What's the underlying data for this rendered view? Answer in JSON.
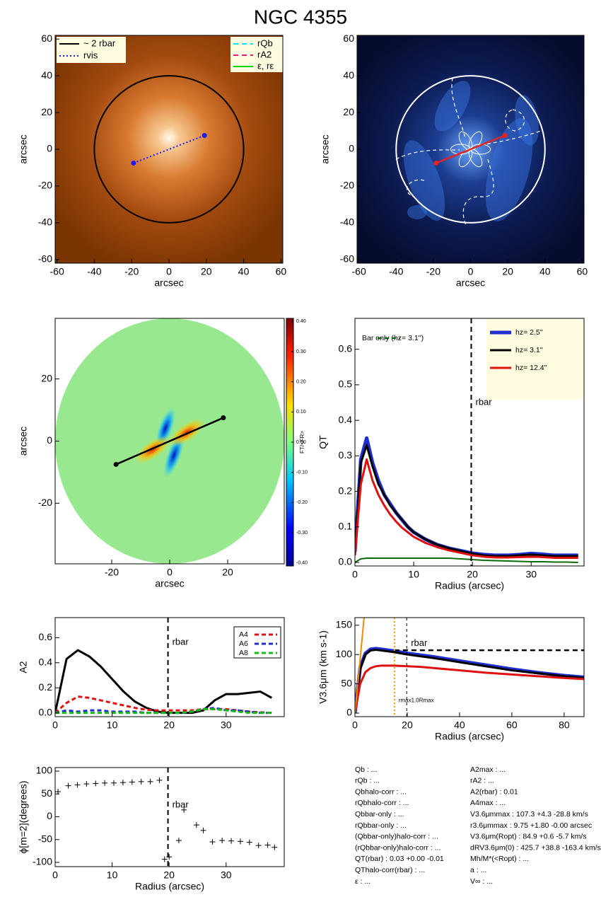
{
  "title": "NGC 4355",
  "chart_data": [
    {
      "type": "image",
      "colormap": "copper",
      "xlim": [
        -61,
        61
      ],
      "ylim": [
        -62,
        62
      ],
      "xticks": [
        -60,
        -40,
        -20,
        0,
        20,
        40,
        60
      ],
      "yticks": [
        -60,
        -40,
        -20,
        0,
        20,
        40,
        60
      ],
      "xlabel": "arcsec",
      "ylabel": "arcsec",
      "circle_radius": 40,
      "circle_color": "#000000",
      "bar": {
        "x": [
          -19,
          19
        ],
        "y": [
          -7.5,
          7.5
        ]
      },
      "bar_color": "#1a1aff",
      "bar_style": "dotted",
      "legend": [
        {
          "label": "~ 2 rbar",
          "color": "#000000",
          "style": "solid"
        },
        {
          "label": "rvis",
          "color": "#1a1aff",
          "style": "dotted"
        },
        {
          "label": "rQb",
          "color": "#00e5ff",
          "style": "dashed"
        },
        {
          "label": "rA2",
          "color": "#e0207a",
          "style": "dashed"
        },
        {
          "label": "ε, rε",
          "color": "#00d000",
          "style": "solid"
        }
      ]
    },
    {
      "type": "image",
      "colormap": "blue",
      "xlim": [
        -61,
        61
      ],
      "ylim": [
        -62,
        62
      ],
      "xticks": [
        -60,
        -40,
        -20,
        0,
        20,
        40,
        60
      ],
      "yticks": [
        -60,
        -40,
        -20,
        0,
        20,
        40,
        60
      ],
      "xlabel": "arcsec",
      "ylabel": "arcsec",
      "circle_radius": 40,
      "circle_color": "#ffffff",
      "bar": {
        "x": [
          -18.5,
          18.5
        ],
        "y": [
          -7.5,
          7.5
        ]
      },
      "bar_color": "#e82020",
      "bar_style": "solid"
    },
    {
      "type": "image",
      "colormap": "jet",
      "xlim": [
        -39.5,
        39.5
      ],
      "ylim": [
        -39.5,
        39.5
      ],
      "xticks": [
        -20,
        0,
        20
      ],
      "yticks": [
        -20,
        0,
        20
      ],
      "xlabel": "arcsec",
      "ylabel": "arcsec",
      "bar": {
        "x": [
          -18.5,
          18.5
        ],
        "y": [
          -7.5,
          7.5
        ]
      },
      "bar_color": "#000000",
      "bar_style": "solid",
      "clim": [
        -0.41,
        0.41
      ],
      "cbar_label": "FT/<FR>",
      "cticks": [
        {
          "value": 0.4,
          "label": "0.40"
        },
        {
          "value": 0.3,
          "label": "0.30"
        },
        {
          "value": 0.2,
          "label": "0.20"
        },
        {
          "value": 0.1,
          "label": "0.10"
        },
        {
          "value": 0.0,
          "label": "0.00"
        },
        {
          "value": -0.1,
          "label": "-0.10"
        },
        {
          "value": -0.2,
          "label": "-0.20"
        },
        {
          "value": -0.3,
          "label": "-0.30"
        },
        {
          "value": -0.4,
          "label": "-0.40"
        }
      ]
    },
    {
      "type": "line",
      "xlim": [
        0,
        39
      ],
      "ylim": [
        -0.01,
        0.687
      ],
      "xticks": [
        0,
        10,
        20,
        30
      ],
      "yticks": [
        {
          "value": 0.0,
          "label": "0.0"
        },
        {
          "value": 0.1,
          "label": "0.1"
        },
        {
          "value": 0.2,
          "label": "0.2"
        },
        {
          "value": 0.3,
          "label": "0.3"
        },
        {
          "value": 0.4,
          "label": "0.4"
        },
        {
          "value": 0.5,
          "label": "0.5"
        },
        {
          "value": 0.6,
          "label": "0.6"
        }
      ],
      "xlabel": "Radius (arcsec)",
      "ylabel": "QT",
      "x": [
        0,
        1,
        2,
        3,
        4,
        5,
        6,
        7,
        8,
        9,
        10,
        12,
        14,
        16,
        18,
        20,
        22,
        24,
        26,
        28,
        30,
        32,
        34,
        36,
        38
      ],
      "series": [
        {
          "name": "hz=  2.5''",
          "color": "#1f2fd0",
          "width": 5,
          "values": [
            0.03,
            0.29,
            0.35,
            0.28,
            0.23,
            0.19,
            0.165,
            0.14,
            0.12,
            0.1,
            0.085,
            0.065,
            0.05,
            0.04,
            0.033,
            0.026,
            0.022,
            0.02,
            0.02,
            0.022,
            0.025,
            0.023,
            0.02,
            0.02,
            0.02
          ]
        },
        {
          "name": "hz=  3.1''",
          "color": "#000000",
          "width": 3,
          "values": [
            0.02,
            0.28,
            0.33,
            0.27,
            0.22,
            0.19,
            0.16,
            0.14,
            0.12,
            0.1,
            0.085,
            0.065,
            0.05,
            0.04,
            0.032,
            0.025,
            0.02,
            0.018,
            0.018,
            0.02,
            0.022,
            0.02,
            0.018,
            0.018,
            0.018
          ]
        },
        {
          "name": "hz=  12.4''",
          "color": "#e01010",
          "width": 3,
          "values": [
            0.02,
            0.22,
            0.29,
            0.23,
            0.19,
            0.16,
            0.135,
            0.115,
            0.098,
            0.085,
            0.072,
            0.055,
            0.043,
            0.034,
            0.027,
            0.02,
            0.016,
            0.014,
            0.014,
            0.015,
            0.016,
            0.015,
            0.013,
            0.013,
            0.013
          ]
        },
        {
          "name": "Bar only (hz=  3.1'')",
          "color": "#0a6a0a",
          "width": 2,
          "values": [
            0.0,
            0.01,
            0.012,
            0.012,
            0.012,
            0.012,
            0.012,
            0.012,
            0.012,
            0.012,
            0.012,
            0.012,
            0.012,
            0.012,
            0.01,
            0.008,
            0.006,
            0.005,
            0.004,
            0.003,
            0.002,
            0.002,
            0.001,
            0.001,
            0.0
          ]
        }
      ],
      "vlines": [
        {
          "x": 19.8,
          "label": "rbar",
          "color": "#000000",
          "style": "dashed"
        }
      ]
    },
    {
      "type": "line",
      "xlim": [
        0,
        40.2
      ],
      "ylim": [
        -0.03,
        0.76
      ],
      "xticks": [
        0,
        10,
        20,
        30
      ],
      "yticks": [
        {
          "value": 0.0,
          "label": "0.0"
        },
        {
          "value": 0.2,
          "label": "0.2"
        },
        {
          "value": 0.4,
          "label": "0.4"
        },
        {
          "value": 0.6,
          "label": "0.6"
        }
      ],
      "ylabel": "A2",
      "x": [
        0,
        2,
        4,
        6,
        8,
        10,
        12,
        14,
        16,
        18,
        20,
        22,
        24,
        26,
        28,
        30,
        32,
        34,
        36,
        38
      ],
      "series": [
        {
          "color": "#000000",
          "width": 3,
          "values": [
            0,
            0.43,
            0.5,
            0.45,
            0.37,
            0.27,
            0.17,
            0.09,
            0.04,
            0.01,
            0,
            0,
            0,
            0.02,
            0.1,
            0.15,
            0.15,
            0.16,
            0.17,
            0.12
          ]
        },
        {
          "name": "A4",
          "color": "#e01010",
          "width": 3,
          "dashed": true,
          "values": [
            0,
            0.08,
            0.13,
            0.12,
            0.1,
            0.08,
            0.06,
            0.04,
            0.025,
            0.02,
            0.02,
            0.02,
            0.02,
            0.03,
            0.03,
            0.03,
            0.02,
            0.01,
            0.005,
            0
          ]
        },
        {
          "name": "A6",
          "color": "#1f2fd0",
          "width": 3,
          "dashed": true,
          "values": [
            0,
            0.02,
            0.01,
            0.02,
            0.02,
            0.01,
            0.01,
            0.01,
            0,
            0,
            0,
            0,
            0.01,
            0.03,
            0.04,
            0.02,
            0.02,
            0.01,
            0,
            0
          ]
        },
        {
          "name": "A8",
          "color": "#10c010",
          "width": 3,
          "dashed": true,
          "values": [
            0,
            0,
            0,
            0,
            0,
            0,
            0,
            0,
            0,
            0,
            0,
            0,
            0.01,
            0.03,
            0.03,
            0.02,
            0.01,
            0,
            0,
            0
          ]
        }
      ],
      "vlines": [
        {
          "x": 19.8,
          "label": "rbar",
          "color": "#000000",
          "style": "dashed"
        }
      ]
    },
    {
      "type": "line",
      "xlim": [
        0,
        87.6
      ],
      "ylim": [
        -6,
        163
      ],
      "xticks": [
        0,
        20,
        40,
        60,
        80
      ],
      "yticks": [
        0,
        50,
        100,
        150
      ],
      "xlabel": "Radius (arcsec)",
      "ylabel": "V3.6μm (km s-1)",
      "x": [
        0,
        2,
        4,
        6,
        8,
        10,
        15,
        20,
        25,
        30,
        40,
        50,
        60,
        70,
        80,
        88
      ],
      "series": [
        {
          "color": "#1f2fd0",
          "width": 5,
          "values": [
            0,
            78,
            102,
            109,
            110,
            109,
            106,
            102,
            99,
            96,
            89,
            82,
            75,
            69,
            64,
            61
          ]
        },
        {
          "color": "#000000",
          "width": 3,
          "values": [
            0,
            75,
            100,
            107,
            108,
            107,
            104,
            100,
            97,
            94,
            87,
            80,
            73,
            68,
            63,
            60
          ]
        },
        {
          "color": "#e01010",
          "width": 3,
          "values": [
            0,
            50,
            70,
            77,
            80,
            81,
            81,
            80,
            79,
            77,
            73,
            69,
            66,
            63,
            60,
            58
          ]
        },
        {
          "color": "#f08a00",
          "width": 2,
          "x": [
            0,
            3.5
          ],
          "values": [
            0,
            163
          ]
        }
      ],
      "hlines": [
        {
          "y": 107.3,
          "xmin": 15.1,
          "color": "#000000"
        }
      ],
      "vlines": [
        {
          "x": 15.1,
          "label": "rmax1.0Rmax",
          "color": "#e8a000",
          "style": "dotted"
        },
        {
          "x": 19.8,
          "label": "rbar",
          "color": "#000000",
          "style": "thin"
        }
      ]
    },
    {
      "type": "scatter",
      "xlim": [
        0,
        40.2
      ],
      "ylim": [
        -109.3,
        107.8
      ],
      "xticks": [
        0,
        10,
        20,
        30
      ],
      "yticks": [
        -100,
        -50,
        0,
        50,
        100
      ],
      "xlabel": "Radius (arcsec)",
      "ylabel": "ϕ[m=2](degrees)",
      "color": "#000000",
      "x": [
        0.5,
        2.3,
        3.9,
        5.5,
        7.1,
        8.7,
        10.3,
        11.9,
        13.5,
        15.1,
        16.7,
        18.3,
        19.2,
        20.0,
        21.7,
        22.6,
        24.8,
        26.0,
        27.6,
        29.3,
        30.9,
        32.5,
        34.1,
        35.7,
        37.3,
        38.5
      ],
      "values": [
        55,
        68,
        70,
        72,
        73,
        74,
        74,
        75,
        76,
        77,
        77,
        80,
        -93,
        -88,
        -52,
        15,
        -18,
        -30,
        -55,
        -52,
        -53,
        -54,
        -56,
        -63,
        -62,
        -67
      ],
      "vlines": [
        {
          "x": 19.8,
          "label": "rbar",
          "color": "#000000",
          "style": "dashed"
        }
      ]
    }
  ],
  "parameters": {
    "left": [
      "Qb : ...",
      "rQb : ...",
      "Qbhalo-corr : ...",
      "rQbhalo-corr : ...",
      "Qbbar-only : ...",
      "rQbbar-only : ...",
      "(Qbbar-only)halo-corr : ...",
      "(rQbbar-only)halo-corr : ...",
      "QT(rbar) :  0.03 +0.00 -0.01",
      "QThalo-corr(rbar) : ...",
      "ε : ..."
    ],
    "right": [
      "A2max : ...",
      "rA2 : ...",
      "A2(rbar) :  0.01",
      "A4max : ...",
      "V3.6μmmax :  107.3 +4.3 -28.8 km/s",
      "r3.6μmmax :  9.75 +1.80 -0.00 arcsec",
      "V3.6μm(Ropt) :  84.9 +0.6 -5.7 km/s",
      "dRV3.6μm(0) :  425.7 +38.8 -163.4 km/s/kpc",
      "Mh/M*(<Ropt) : ...",
      "a : ...",
      "V∞ : ..."
    ]
  }
}
